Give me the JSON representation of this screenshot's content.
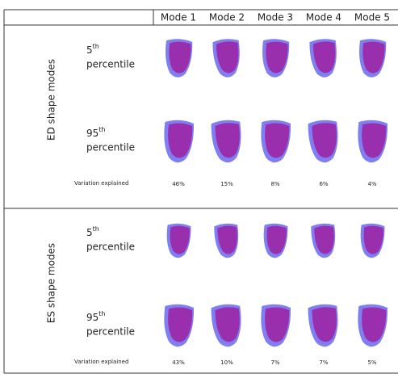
{
  "table": {
    "header": [
      "Mode 1",
      "Mode 2",
      "Mode 3",
      "Mode 4",
      "Mode 5"
    ],
    "sections": [
      {
        "title": "ED shape modes",
        "rows": [
          {
            "number": "5",
            "suffix": "th",
            "word": "percentile"
          },
          {
            "number": "95",
            "suffix": "th",
            "word": "percentile"
          }
        ],
        "variation_label": "Variation explained",
        "variation": [
          "46%",
          "15%",
          "8%",
          "6%",
          "4%"
        ]
      },
      {
        "title": "ES shape modes",
        "rows": [
          {
            "number": "5",
            "suffix": "th",
            "word": "percentile"
          },
          {
            "number": "95",
            "suffix": "th",
            "word": "percentile"
          }
        ],
        "variation_label": "Variation explained",
        "variation": [
          "43%",
          "10%",
          "7%",
          "7%",
          "5%"
        ]
      }
    ]
  }
}
